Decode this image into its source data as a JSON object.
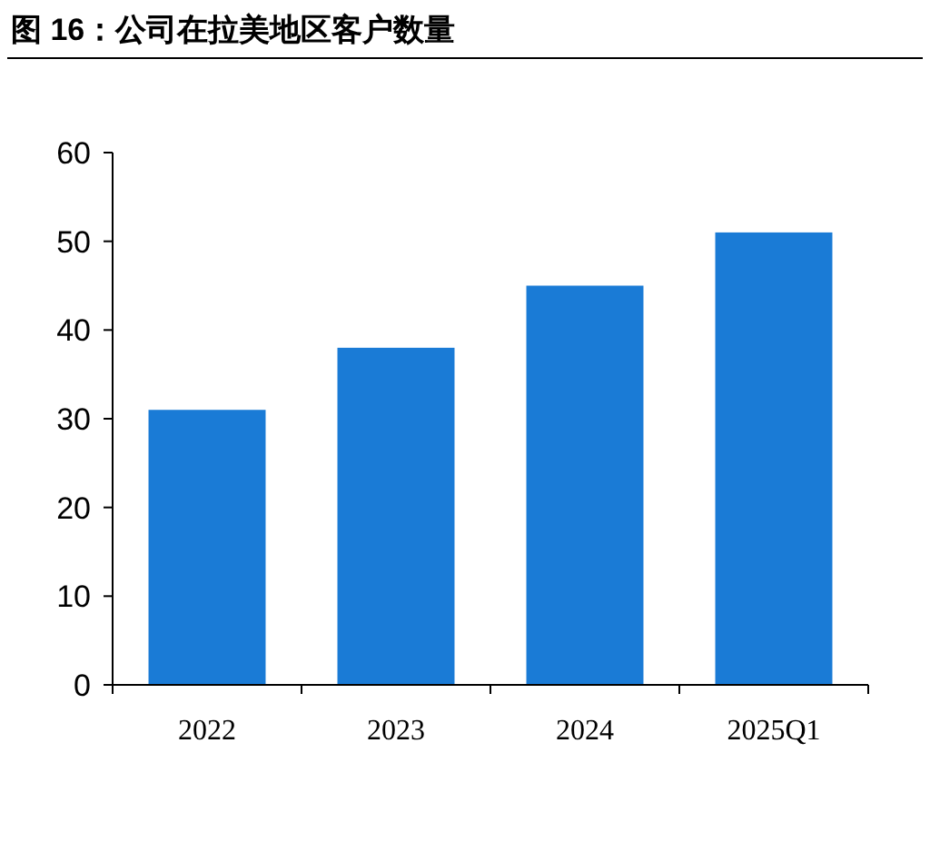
{
  "chart_data": {
    "type": "bar",
    "title": "图 16：公司在拉美地区客户数量",
    "categories": [
      "2022",
      "2023",
      "2024",
      "2025Q1"
    ],
    "values": [
      31,
      38,
      45,
      51
    ],
    "color": "#1a7bd6",
    "ylim": [
      0,
      60
    ],
    "yticks": [
      0,
      10,
      20,
      30,
      40,
      50,
      60
    ],
    "grid": false
  }
}
